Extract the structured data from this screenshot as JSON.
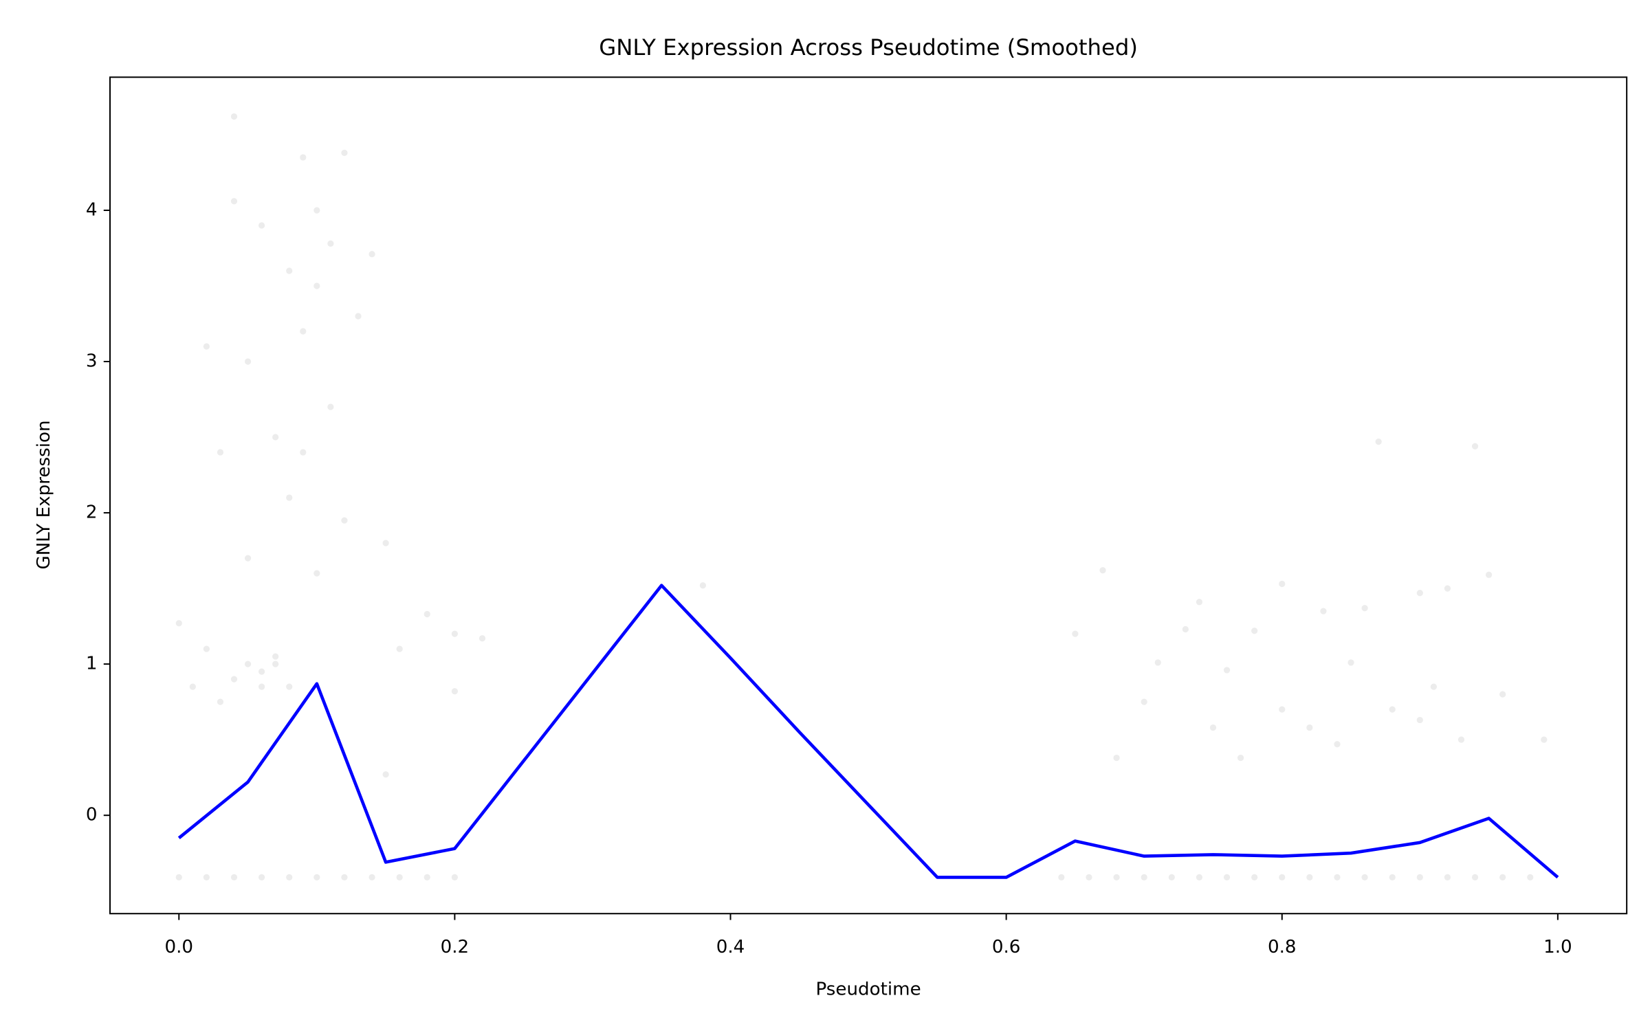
{
  "chart_data": {
    "type": "line",
    "title": "GNLY Expression Across Pseudotime (Smoothed)",
    "x_label": "Pseudotime",
    "y_label": "GNLY Expression",
    "x": [
      0,
      0.05,
      0.1,
      0.15,
      0.2,
      0.25,
      0.3,
      0.35,
      0.4,
      0.45,
      0.5,
      0.55,
      0.6,
      0.65,
      0.7,
      0.75,
      0.8,
      0.85,
      0.9,
      0.95,
      1.0
    ],
    "values": [
      -0.15,
      0.22,
      0.87,
      -0.31,
      -0.22,
      0.36,
      0.94,
      1.52,
      1.04,
      0.55,
      0.07,
      -0.41,
      -0.41,
      -0.17,
      -0.27,
      -0.26,
      -0.27,
      -0.25,
      -0.18,
      -0.02,
      -0.41
    ],
    "color": "#0000ff",
    "scatter": {
      "color": "#808080",
      "x": [
        0.0,
        0.01,
        0.02,
        0.02,
        0.03,
        0.04,
        0.04,
        0.04,
        0.05,
        0.05,
        0.05,
        0.06,
        0.06,
        0.07,
        0.07,
        0.08,
        0.08,
        0.09,
        0.09,
        0.09,
        0.1,
        0.1,
        0.1,
        0.11,
        0.11,
        0.12,
        0.12,
        0.13,
        0.14,
        0.15,
        0.15,
        0.16,
        0.18,
        0.2,
        0.2,
        0.22,
        0.06,
        0.07,
        0.03,
        0.08,
        0.38,
        0.65,
        0.67,
        0.68,
        0.7,
        0.71,
        0.73,
        0.74,
        0.76,
        0.77,
        0.78,
        0.8,
        0.8,
        0.82,
        0.83,
        0.85,
        0.86,
        0.87,
        0.88,
        0.9,
        0.9,
        0.92,
        0.93,
        0.94,
        0.95,
        0.96,
        0.99,
        0.84,
        0.91,
        0.75,
        0.0,
        0.02,
        0.04,
        0.06,
        0.08,
        0.1,
        0.12,
        0.14,
        0.16,
        0.18,
        0.2,
        0.64,
        0.66,
        0.68,
        0.7,
        0.72,
        0.74,
        0.76,
        0.78,
        0.8,
        0.82,
        0.84,
        0.86,
        0.88,
        0.9,
        0.92,
        0.94,
        0.96,
        0.98
      ],
      "y": [
        1.27,
        0.85,
        1.1,
        3.1,
        2.4,
        4.62,
        4.06,
        0.9,
        1.0,
        3.0,
        1.7,
        3.9,
        0.95,
        2.5,
        1.05,
        3.6,
        0.85,
        4.35,
        3.2,
        2.4,
        3.5,
        4.0,
        1.6,
        3.78,
        2.7,
        4.38,
        1.95,
        3.3,
        3.71,
        1.8,
        0.27,
        1.1,
        1.33,
        1.2,
        0.82,
        1.17,
        0.85,
        1.0,
        0.75,
        2.1,
        1.52,
        1.2,
        1.62,
        0.38,
        0.75,
        1.01,
        1.23,
        1.41,
        0.96,
        0.38,
        1.22,
        0.7,
        1.53,
        0.58,
        1.35,
        1.01,
        1.37,
        2.47,
        0.7,
        1.47,
        0.63,
        1.5,
        0.5,
        2.44,
        1.59,
        0.8,
        0.5,
        0.47,
        0.85,
        0.58,
        -0.41,
        -0.41,
        -0.41,
        -0.41,
        -0.41,
        -0.41,
        -0.41,
        -0.41,
        -0.41,
        -0.41,
        -0.41,
        -0.41,
        -0.41,
        -0.41,
        -0.41,
        -0.41,
        -0.41,
        -0.41,
        -0.41,
        -0.41,
        -0.41,
        -0.41,
        -0.41,
        -0.41,
        -0.41,
        -0.41,
        -0.41,
        -0.41,
        -0.41
      ]
    },
    "xlim": [
      -0.05,
      1.05
    ],
    "ylim": [
      -0.65,
      4.88
    ],
    "xticks": [
      {
        "value": 0,
        "label": "0.0"
      },
      {
        "value": 0.2,
        "label": "0.2"
      },
      {
        "value": 0.4,
        "label": "0.4"
      },
      {
        "value": 0.6,
        "label": "0.6"
      },
      {
        "value": 0.8,
        "label": "0.8"
      },
      {
        "value": 1.0,
        "label": "1.0"
      }
    ],
    "yticks": [
      0,
      1,
      2,
      3,
      4
    ]
  }
}
